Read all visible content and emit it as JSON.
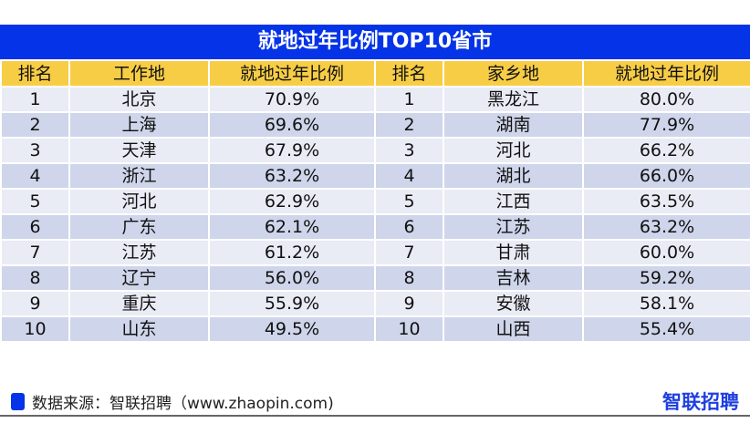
{
  "title": "就地过年比例TOP10省市",
  "headers": [
    "排名",
    "工作地",
    "就地过年比例",
    "排名",
    "家乡地",
    "就地过年比例"
  ],
  "rows": [
    [
      "1",
      "北京",
      "70.9%",
      "1",
      "黑龙江",
      "80.0%"
    ],
    [
      "2",
      "上海",
      "69.6%",
      "2",
      "湖南",
      "77.9%"
    ],
    [
      "3",
      "天津",
      "67.9%",
      "3",
      "河北",
      "66.2%"
    ],
    [
      "4",
      "浙江",
      "63.2%",
      "4",
      "湖北",
      "66.0%"
    ],
    [
      "5",
      "河北",
      "62.9%",
      "5",
      "江西",
      "63.5%"
    ],
    [
      "6",
      "广东",
      "62.1%",
      "6",
      "江苏",
      "63.2%"
    ],
    [
      "7",
      "江苏",
      "61.2%",
      "7",
      "甘肃",
      "60.0%"
    ],
    [
      "8",
      "辽宁",
      "56.0%",
      "8",
      "吉林",
      "59.2%"
    ],
    [
      "9",
      "重庆",
      "55.9%",
      "9",
      "安徽",
      "58.1%"
    ],
    [
      "10",
      "山东",
      "49.5%",
      "10",
      "山西",
      "55.4%"
    ]
  ],
  "footer": {
    "source": "数据来源：智联招聘（www.zhaopin.com)",
    "logo": "智联招聘"
  },
  "colors": {
    "title_bg": "#0433e8",
    "header_bg": "#f8cd46",
    "row_light": "#e9ebf5",
    "row_dark": "#cfd5ea"
  }
}
